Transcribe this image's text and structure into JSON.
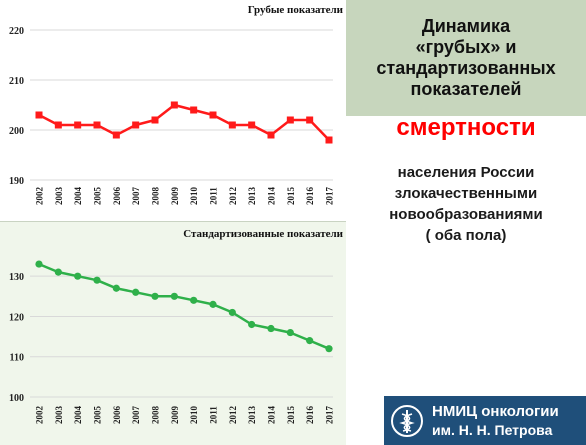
{
  "chart_data": [
    {
      "type": "line",
      "title": "Грубые показатели",
      "color": "#ff1a1a",
      "categories": [
        "2002",
        "2003",
        "2004",
        "2005",
        "2006",
        "2007",
        "2008",
        "2009",
        "2010",
        "2011",
        "2012",
        "2013",
        "2014",
        "2015",
        "2016",
        "2017"
      ],
      "values": [
        203,
        201,
        201,
        201,
        199,
        201,
        202,
        205,
        204,
        203,
        201,
        201,
        199,
        202,
        202,
        198
      ],
      "yticks": [
        190,
        200,
        210,
        220
      ],
      "ylim": [
        190,
        220
      ]
    },
    {
      "type": "line",
      "title": "Стандартизованные показатели",
      "color": "#2fb04a",
      "categories": [
        "2002",
        "2003",
        "2004",
        "2005",
        "2006",
        "2007",
        "2008",
        "2009",
        "2010",
        "2011",
        "2012",
        "2013",
        "2014",
        "2015",
        "2016",
        "2017"
      ],
      "values": [
        133,
        131,
        130,
        129,
        127,
        126,
        125,
        125,
        124,
        123,
        121,
        118,
        117,
        116,
        114,
        112
      ],
      "yticks": [
        100,
        110,
        120,
        130
      ],
      "ylim": [
        100,
        136
      ]
    }
  ],
  "header": {
    "title": "Динамика\n«грубых» и\nстандартизованных\nпоказателей",
    "keyword": "смертности",
    "subtitle": "населения России\nзлокачественными\nновообразованиями\n( оба пола)"
  },
  "logo": {
    "line1": "НМИЦ онкологии",
    "line2": "им. Н. Н. Петрова",
    "background": "#1f4f7a"
  }
}
